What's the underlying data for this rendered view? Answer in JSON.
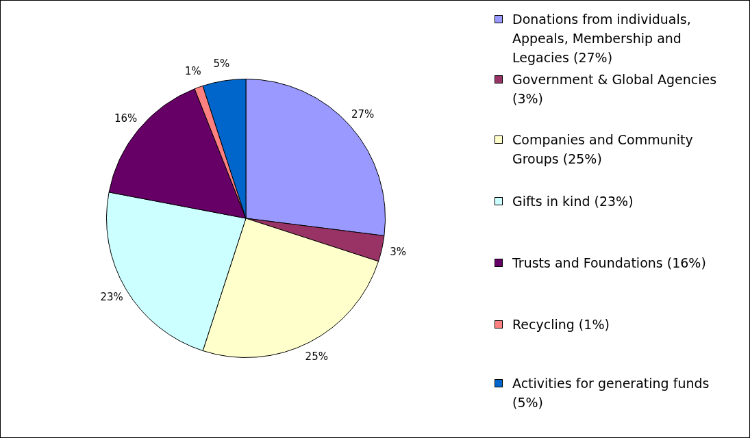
{
  "chart_data": {
    "type": "pie",
    "categories": [
      "Donations from individuals, Appeals, Membership and Legacies (27%)",
      "Government & Global Agencies (3%)",
      "Companies and Community Groups (25%)",
      "Gifts in kind (23%)",
      "Trusts and Foundations (16%)",
      "Recycling (1%)",
      "Activities for generating funds (5%)"
    ],
    "values": [
      27,
      3,
      25,
      23,
      16,
      1,
      5
    ],
    "value_labels": [
      "27%",
      "3%",
      "25%",
      "23%",
      "16%",
      "1%",
      "5%"
    ],
    "colors": [
      "#9999ff",
      "#993366",
      "#ffffcc",
      "#ccffff",
      "#660066",
      "#ff8080",
      "#0066cc"
    ],
    "legend": "right"
  }
}
